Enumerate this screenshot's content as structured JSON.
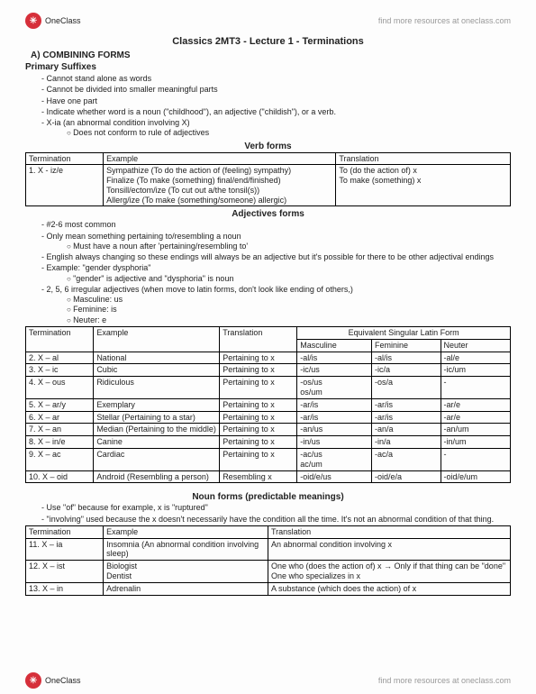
{
  "logo": {
    "text": "OneClass",
    "glyph": "✳"
  },
  "topLink": "find more resources at oneclass.com",
  "title": "Classics 2MT3 - Lecture 1 - Terminations",
  "sectionA": "A)  COMBINING FORMS",
  "primarySuffixes": "Primary Suffixes",
  "psBullets": [
    "Cannot stand alone as words",
    "Cannot be divided into smaller meaningful parts",
    "Have one part",
    "Indicate whether word is a noun (\"childhood\"), an adjective (\"childish\"), or a verb.",
    "X-ia (an abnormal condition involving X)"
  ],
  "psSub": "Does not conform to rule of adjectives",
  "verbCap": "Verb forms",
  "verbHeaders": [
    "Termination",
    "Example",
    "Translation"
  ],
  "verbRow": {
    "term": "1. X - iz/e",
    "ex": "Sympathize (To do the action of (feeling) sympathy)\nFinalize (To make (something) final/end/finished)\nTonsill/ectom/ize (To cut out a/the tonsil(s))\nAllerg/ize (To make (something/someone) allergic)",
    "tr": "To (do the action of) x\nTo make (something) x"
  },
  "adjCap": "Adjectives forms",
  "adjNotes": [
    "#2-6 most common",
    "Only mean something pertaining to/resembling a noun",
    "English always changing so these endings will always be an adjective but it's possible for there to be other adjectival endings",
    "Example: \"gender dysphoria\"",
    "2, 5, 6 irregular adjectives (when move to latin forms, don't look like ending of others,)"
  ],
  "adjNoteSub1": "Must have a noun after 'pertaining/resembling to'",
  "adjNoteSub2": "\"gender\" is adjective and \"dysphoria\" is noun",
  "mfn": [
    "Masculine: us",
    "Feminine: is",
    "Neuter: e"
  ],
  "adjHeaders": {
    "c1": "Termination",
    "c2": "Example",
    "c3": "Translation",
    "c4": "Equivalent Singular Latin Form",
    "m": "Masculine",
    "f": "Feminine",
    "n": "Neuter"
  },
  "adjRows": [
    {
      "t": "2. X – al",
      "e": "National",
      "tr": "Pertaining to x",
      "m": "-al/is",
      "f": "-al/is",
      "n": "-al/e"
    },
    {
      "t": "3. X – ic",
      "e": "Cubic",
      "tr": "Pertaining to x",
      "m": "-ic/us",
      "f": "-ic/a",
      "n": "-ic/um"
    },
    {
      "t": "4. X – ous",
      "e": "Ridiculous",
      "tr": "Pertaining to x",
      "m": "-os/us\nos/um",
      "f": "-os/a",
      "n": "-"
    },
    {
      "t": "5. X – ar/y",
      "e": "Exemplary",
      "tr": "Pertaining to x",
      "m": "-ar/is",
      "f": "-ar/is",
      "n": "-ar/e"
    },
    {
      "t": "6. X – ar",
      "e": "Stellar (Pertaining to a star)",
      "tr": "Pertaining to x",
      "m": "-ar/is",
      "f": "-ar/is",
      "n": "-ar/e"
    },
    {
      "t": "7. X – an",
      "e": "Median (Pertaining to the middle)",
      "tr": "Pertaining to x",
      "m": "-an/us",
      "f": "-an/a",
      "n": "-an/um"
    },
    {
      "t": "8. X – in/e",
      "e": "Canine",
      "tr": "Pertaining to x",
      "m": "-in/us",
      "f": "-in/a",
      "n": "-in/um"
    },
    {
      "t": "9. X – ac",
      "e": "Cardiac",
      "tr": "Pertaining to x",
      "m": "-ac/us\nac/um",
      "f": "-ac/a",
      "n": "-"
    },
    {
      "t": "10. X – oid",
      "e": "Android (Resembling a person)",
      "tr": "Resembling x",
      "m": "-oid/e/us",
      "f": "-oid/e/a",
      "n": "-oid/e/um"
    }
  ],
  "nounCap": "Noun forms (predictable meanings)",
  "nounNotes": [
    "Use \"of\" because for example, x is \"ruptured\"",
    "\"involving\" used because the x doesn't necessarily have the condition all the time. It's not an abnormal condition of that thing."
  ],
  "nounHeaders": [
    "Termination",
    "Example",
    "Translation"
  ],
  "nounRows": [
    {
      "t": "11. X – ia",
      "e": "Insomnia (An abnormal condition involving sleep)",
      "tr": "An abnormal condition involving x"
    },
    {
      "t": "12. X – ist",
      "e": "Biologist\nDentist",
      "tr": "One who (does the action of) x → Only if that thing can be \"done\"\nOne who specializes in x"
    },
    {
      "t": "13. X – in",
      "e": "Adrenalin",
      "tr": "A substance (which does the action) of x"
    }
  ]
}
